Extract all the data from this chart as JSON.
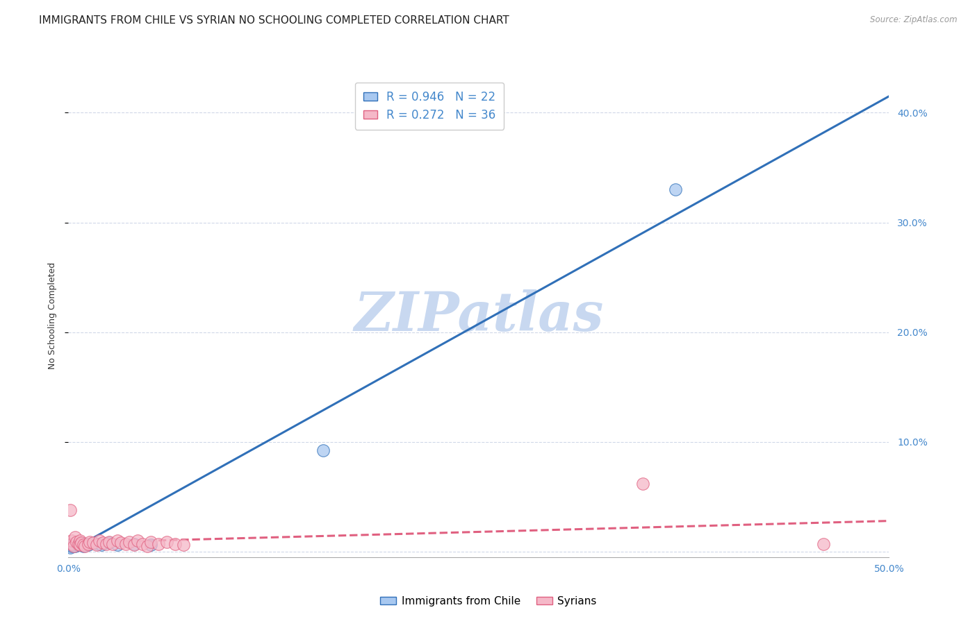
{
  "title": "IMMIGRANTS FROM CHILE VS SYRIAN NO SCHOOLING COMPLETED CORRELATION CHART",
  "source": "Source: ZipAtlas.com",
  "ylabel": "No Schooling Completed",
  "xlim": [
    0.0,
    0.5
  ],
  "ylim": [
    -0.005,
    0.435
  ],
  "xticks": [
    0.0,
    0.1,
    0.2,
    0.3,
    0.4,
    0.5
  ],
  "yticks": [
    0.1,
    0.2,
    0.3,
    0.4
  ],
  "ytick_labels_right": [
    "10.0%",
    "20.0%",
    "30.0%",
    "40.0%"
  ],
  "xtick_labels": [
    "0.0%",
    "",
    "",
    "",
    "",
    "50.0%"
  ],
  "chile_R": 0.946,
  "chile_N": 22,
  "syria_R": 0.272,
  "syria_N": 36,
  "chile_color": "#a8c8f0",
  "chile_line_color": "#3070b8",
  "syria_color": "#f5b8c8",
  "syria_line_color": "#e06080",
  "watermark_text": "ZIPatlas",
  "watermark_color": "#c8d8f0",
  "chile_line_x0": 0.0,
  "chile_line_y0": 0.0,
  "chile_line_x1": 0.5,
  "chile_line_y1": 0.415,
  "syria_line_x0": 0.0,
  "syria_line_y0": 0.008,
  "syria_line_x1": 0.5,
  "syria_line_y1": 0.028,
  "chile_scatter_x": [
    0.001,
    0.002,
    0.002,
    0.003,
    0.003,
    0.004,
    0.005,
    0.006,
    0.007,
    0.008,
    0.009,
    0.01,
    0.012,
    0.015,
    0.018,
    0.02,
    0.025,
    0.03,
    0.04,
    0.05,
    0.155,
    0.37
  ],
  "chile_scatter_y": [
    0.004,
    0.005,
    0.006,
    0.006,
    0.007,
    0.005,
    0.007,
    0.006,
    0.008,
    0.006,
    0.005,
    0.007,
    0.006,
    0.008,
    0.007,
    0.006,
    0.008,
    0.006,
    0.007,
    0.006,
    0.092,
    0.33
  ],
  "syria_scatter_x": [
    0.001,
    0.002,
    0.002,
    0.003,
    0.004,
    0.005,
    0.006,
    0.007,
    0.007,
    0.008,
    0.009,
    0.01,
    0.012,
    0.013,
    0.015,
    0.017,
    0.019,
    0.021,
    0.023,
    0.025,
    0.027,
    0.03,
    0.032,
    0.035,
    0.037,
    0.04,
    0.042,
    0.045,
    0.048,
    0.05,
    0.055,
    0.06,
    0.065,
    0.07,
    0.35,
    0.46
  ],
  "syria_scatter_y": [
    0.038,
    0.007,
    0.01,
    0.005,
    0.013,
    0.009,
    0.007,
    0.01,
    0.006,
    0.008,
    0.006,
    0.005,
    0.007,
    0.009,
    0.008,
    0.006,
    0.01,
    0.008,
    0.007,
    0.009,
    0.007,
    0.01,
    0.008,
    0.007,
    0.009,
    0.006,
    0.01,
    0.007,
    0.005,
    0.009,
    0.007,
    0.009,
    0.007,
    0.006,
    0.062,
    0.007
  ],
  "background_color": "#ffffff",
  "grid_color": "#d0d8e8",
  "title_fontsize": 11,
  "axis_label_fontsize": 9,
  "tick_fontsize": 10,
  "legend_fontsize": 12
}
